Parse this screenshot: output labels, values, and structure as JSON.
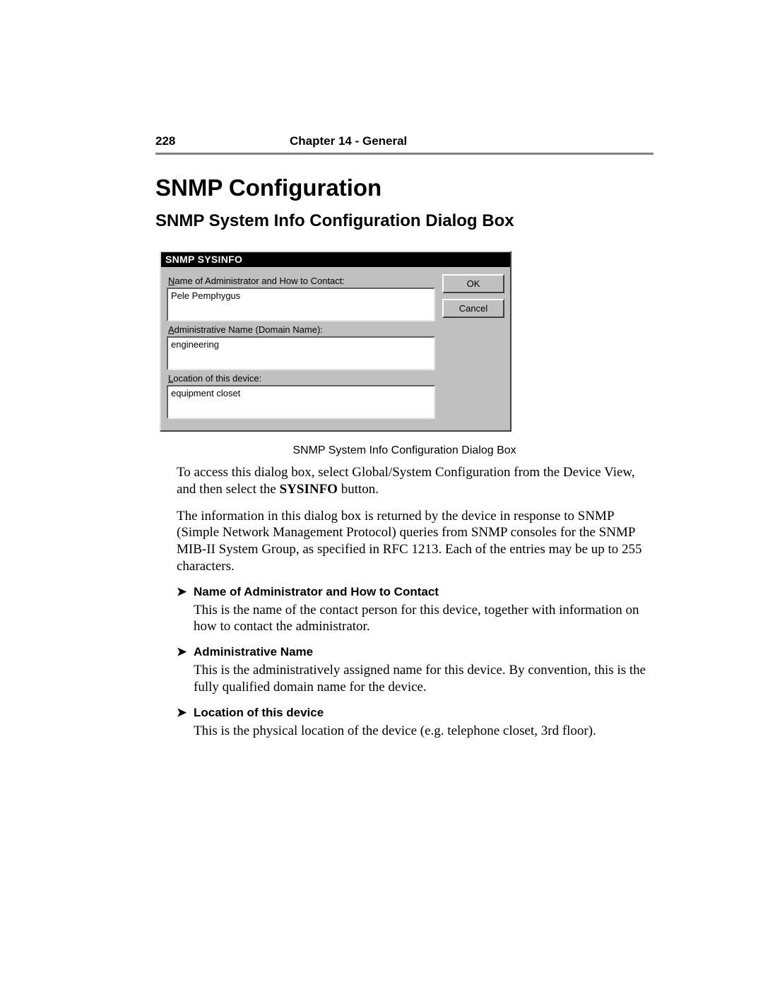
{
  "header": {
    "page_number": "228",
    "chapter": "Chapter 14 - General"
  },
  "titles": {
    "section": "SNMP Configuration",
    "subsection": "SNMP System Info Configuration Dialog Box"
  },
  "dialog": {
    "title": "SNMP SYSINFO",
    "fields": [
      {
        "underlined": "N",
        "label_rest": "ame of Administrator and How to Contact:",
        "value": "Pele Pemphygus"
      },
      {
        "underlined": "A",
        "label_rest": "dministrative Name (Domain Name):",
        "value": "engineering"
      },
      {
        "underlined": "L",
        "label_rest": "ocation of this device:",
        "value": "equipment closet"
      }
    ],
    "buttons": {
      "ok": "OK",
      "cancel": "Cancel"
    },
    "colors": {
      "face": "#c0c0c0",
      "titlebar_bg": "#000000",
      "titlebar_fg": "#ffffff",
      "shadow": "#404040",
      "highlight": "#ffffff",
      "textbox_bg": "#ffffff"
    }
  },
  "caption": "SNMP System Info Configuration Dialog Box",
  "paragraphs": {
    "p1a": "To access this dialog box, select Global/System Configuration from the Device View, and then select the ",
    "p1_bold": "SYSINFO",
    "p1b": " button.",
    "p2": "The information in this dialog box is returned by the device in response to SNMP (Simple Network Management Protocol) queries from SNMP consoles for the SNMP MIB-II System Group, as specified in RFC 1213. Each of the entries may be up to 255 characters."
  },
  "items": [
    {
      "heading": "Name of Administrator and How to Contact",
      "body": "This is the name of the contact person for this device, together with information on how to contact the administrator."
    },
    {
      "heading": "Administrative Name",
      "body": "This is the administratively assigned name for this device. By convention, this is the fully qualified domain name for the device."
    },
    {
      "heading": "Location of this device",
      "body": "This is the physical location of the device (e.g. telephone closet, 3rd floor)."
    }
  ],
  "bullet": "➤"
}
